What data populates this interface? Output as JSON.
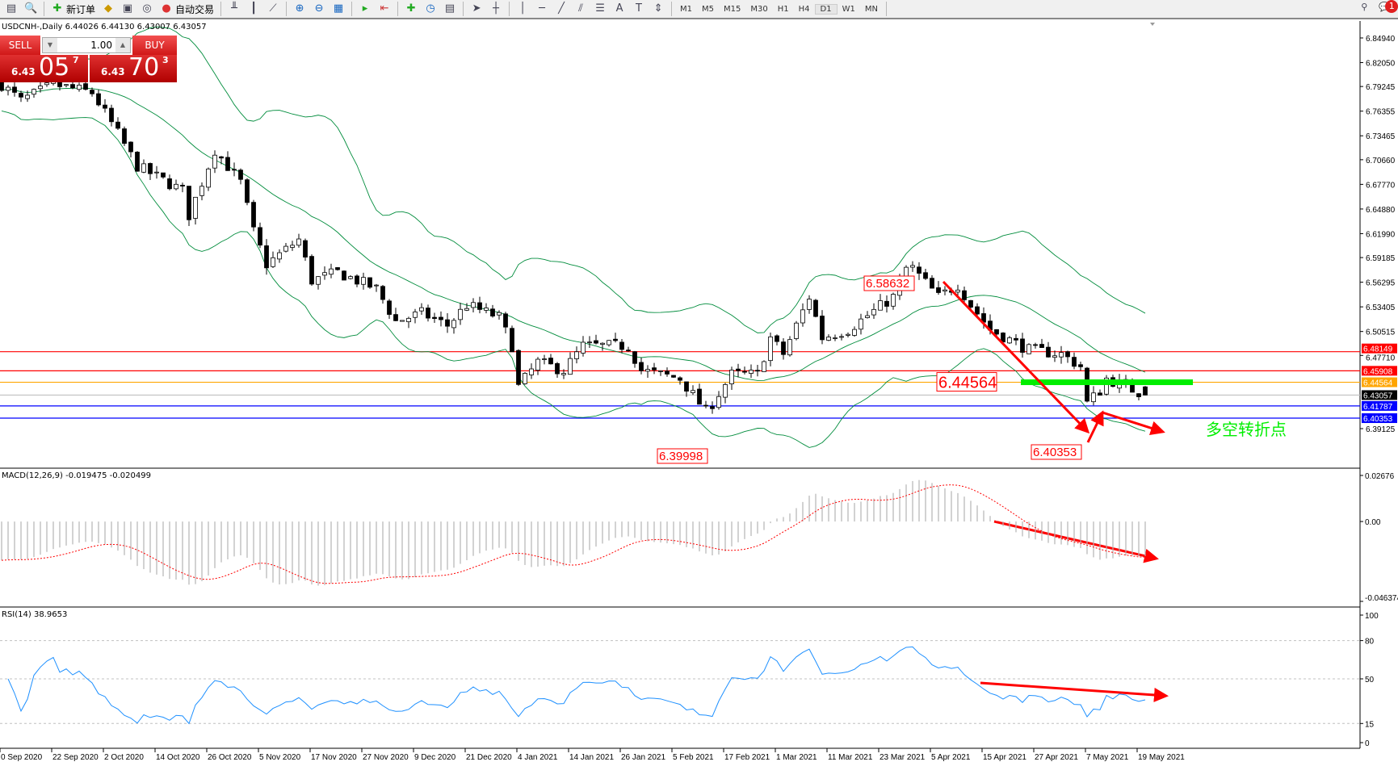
{
  "toolbar": {
    "new_order": "新订单",
    "auto_trading": "自动交易",
    "periods": [
      "M1",
      "M5",
      "M15",
      "M30",
      "H1",
      "H4",
      "D1",
      "W1",
      "MN"
    ],
    "active_period": "D1",
    "notification_count": "1",
    "icons": [
      "new-chart-icon",
      "profile-icon",
      "new-order-icon",
      "market-watch-icon",
      "navigator-icon",
      "signals-icon",
      "auto-trading-icon",
      "bar-chart-icon",
      "candlestick-icon",
      "line-chart-icon",
      "zoom-in-icon",
      "zoom-out-icon",
      "tile-windows-icon",
      "autoscroll-icon",
      "chart-shift-icon",
      "indicators-icon",
      "periods-icon",
      "templates-icon",
      "cursor-icon",
      "crosshair-icon",
      "vertical-line-icon",
      "horizontal-line-icon",
      "trendline-icon",
      "equidistant-channel-icon",
      "fibonacci-icon",
      "text-icon",
      "text-label-icon",
      "arrows-icon",
      "search-icon",
      "chat-icon"
    ]
  },
  "chart": {
    "header": "USDCNH-,Daily  6.44026 6.44130 6.43007 6.43057",
    "trade_panel": {
      "sell": "SELL",
      "buy": "BUY",
      "lot": "1.00",
      "sell_big": "6.43",
      "sell_pips": "05",
      "sell_frac": "7",
      "buy_big": "6.43",
      "buy_pips": "70",
      "buy_frac": "3"
    },
    "macd_label": "MACD(12,26,9) -0.019475 -0.020499",
    "rsi_label": "RSI(14) 38.9653",
    "annotation_text": "多空转折点",
    "colors": {
      "bull_band": "#008c3c",
      "level_red": "#ff0000",
      "level_orange": "#ffa500",
      "level_gray": "#c0c0c0",
      "level_blue": "#0000ff",
      "green_bar": "#00ee00",
      "arrow": "#ff0000"
    }
  },
  "chart_data": {
    "type": "candlestick",
    "symbol": "USDCNH-",
    "timeframe": "Daily",
    "ylim": [
      6.39125,
      6.8494
    ],
    "price_ticks": [
      "6.84940",
      "6.82050",
      "6.79245",
      "6.76355",
      "6.73465",
      "6.70660",
      "6.67770",
      "6.64880",
      "6.61990",
      "6.59185",
      "6.56295",
      "6.53405",
      "6.50515",
      "6.47710",
      "6.39125"
    ],
    "levels": [
      {
        "value": 6.48149,
        "label": "6.48149",
        "color": "#ff0000",
        "text": "#fff"
      },
      {
        "value": 6.45908,
        "label": "6.45908",
        "color": "#ff0000",
        "text": "#fff"
      },
      {
        "value": 6.44564,
        "label": "6.44564",
        "color": "#ffa500",
        "text": "#fff"
      },
      {
        "value": 6.43057,
        "label": "6.43057",
        "color": "#c0c0c0",
        "tag": "#000",
        "text": "#fff"
      },
      {
        "value": 6.41787,
        "label": "6.41787",
        "color": "#0000ff",
        "text": "#fff"
      },
      {
        "value": 6.40353,
        "label": "6.40353",
        "color": "#0000ff",
        "text": "#fff"
      }
    ],
    "price_labels": [
      {
        "bar": 140,
        "value": 6.58632,
        "text": "6.58632"
      },
      {
        "bar": 109,
        "value": 6.39998,
        "text": "6.39998"
      },
      {
        "bar": 168,
        "value": 6.40353,
        "text": "6.40353"
      },
      {
        "bar": 150,
        "value": 6.44564,
        "text": "6.44564"
      }
    ],
    "close_path": [
      [
        0,
        6.7948
      ],
      [
        3,
        6.7756
      ],
      [
        8,
        6.7948
      ],
      [
        14,
        6.7852
      ],
      [
        18,
        6.7373
      ],
      [
        21,
        6.699
      ],
      [
        28,
        6.6703
      ],
      [
        29,
        6.6415
      ],
      [
        33,
        6.7182
      ],
      [
        37,
        6.6798
      ],
      [
        39,
        6.6223
      ],
      [
        41,
        6.584
      ],
      [
        46,
        6.6128
      ],
      [
        48,
        6.5649
      ],
      [
        52,
        6.5745
      ],
      [
        58,
        6.5553
      ],
      [
        61,
        6.517
      ],
      [
        65,
        6.5266
      ],
      [
        69,
        6.5122
      ],
      [
        72,
        6.5362
      ],
      [
        77,
        6.5218
      ],
      [
        79,
        6.4883
      ],
      [
        80,
        6.4403
      ],
      [
        83,
        6.4691
      ],
      [
        87,
        6.4595
      ],
      [
        90,
        6.4883
      ],
      [
        97,
        6.4883
      ],
      [
        99,
        6.4595
      ],
      [
        105,
        6.45
      ],
      [
        109,
        6.4116
      ],
      [
        110,
        6.4212
      ],
      [
        113,
        6.4547
      ],
      [
        117,
        6.4547
      ],
      [
        119,
        6.4978
      ],
      [
        121,
        6.4787
      ],
      [
        125,
        6.5457
      ],
      [
        127,
        6.4978
      ],
      [
        131,
        6.5074
      ],
      [
        138,
        6.5457
      ],
      [
        140,
        6.5793
      ],
      [
        141,
        6.5793
      ],
      [
        145,
        6.5457
      ],
      [
        148,
        6.5601
      ],
      [
        150,
        6.5362
      ],
      [
        153,
        6.5074
      ],
      [
        159,
        6.4835
      ],
      [
        164,
        6.4787
      ],
      [
        167,
        6.4643
      ],
      [
        168,
        6.4212
      ],
      [
        170,
        6.4356
      ],
      [
        171,
        6.45
      ],
      [
        174,
        6.4403
      ],
      [
        177,
        6.4306
      ]
    ],
    "x_tick_labels": [
      "0 Sep 2020",
      "22 Sep 2020",
      "2 Oct 2020",
      "14 Oct 2020",
      "26 Oct 2020",
      "5 Nov 2020",
      "17 Nov 2020",
      "27 Nov 2020",
      "9 Dec 2020",
      "21 Dec 2020",
      "4 Jan 2021",
      "14 Jan 2021",
      "26 Jan 2021",
      "5 Feb 2021",
      "17 Feb 2021",
      "1 Mar 2021",
      "11 Mar 2021",
      "23 Mar 2021",
      "5 Apr 2021",
      "15 Apr 2021",
      "27 Apr 2021",
      "7 May 2021",
      "19 May 2021"
    ],
    "indicators": {
      "bollinger": {
        "period": 20,
        "deviation": 2
      },
      "macd": {
        "fast": 12,
        "slow": 26,
        "signal": 9,
        "ylim": [
          -0.046374,
          0.02676
        ],
        "ticks": [
          "0.02676",
          "0.00",
          "-0.046374"
        ]
      },
      "rsi": {
        "period": 14,
        "ylim": [
          0,
          100
        ],
        "ticks": [
          "100",
          "80",
          "50",
          "15",
          "0"
        ],
        "levels": [
          80,
          50,
          15
        ]
      }
    }
  }
}
